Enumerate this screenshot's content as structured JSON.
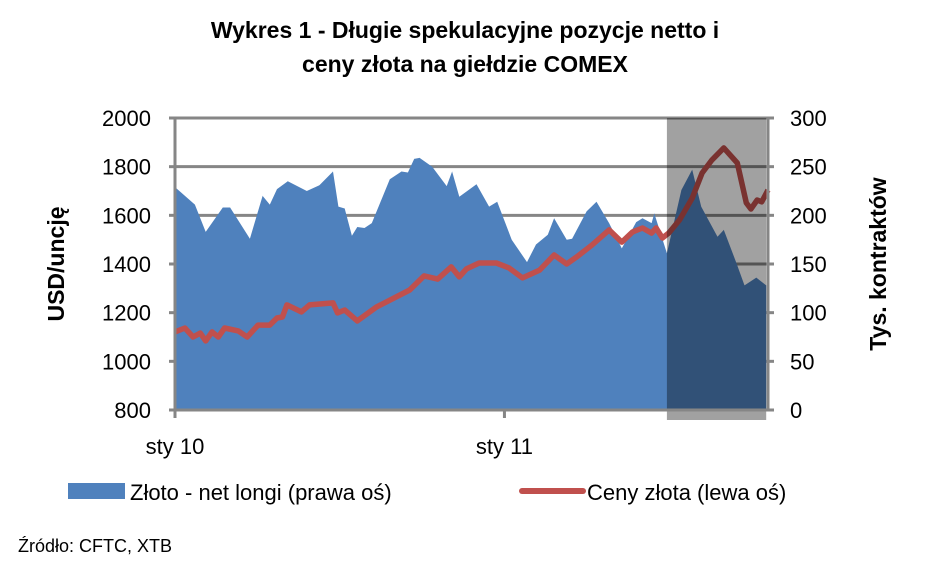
{
  "chart_data": {
    "type": "area+line",
    "title_lines": [
      "Wykres 1 - Długie spekulacyjne pozycje netto i",
      "ceny złota na giełdzie COMEX"
    ],
    "ylabel_left": "USD/uncję",
    "ylabel_right": "Tys. kontraktów",
    "ylim_left": [
      800,
      2000
    ],
    "ylim_right": [
      0,
      300
    ],
    "yticks_left": [
      "800",
      "1000",
      "1200",
      "1400",
      "1600",
      "1800",
      "2000"
    ],
    "yticks_right": [
      "0",
      "50",
      "100",
      "150",
      "200",
      "250",
      "300"
    ],
    "x_range": [
      "2010-01-01",
      "2011-10-20"
    ],
    "x_ticks": [
      {
        "date": "2010-01-01",
        "label": "sty 10"
      },
      {
        "date": "2011-01-01",
        "label": "sty 11"
      }
    ],
    "grid": "horizontal",
    "legend_placement": "bottom",
    "highlight_range": [
      "2011-06-30",
      "2011-10-18"
    ],
    "colors": {
      "area": "#4f81bd",
      "line": "#c0504d",
      "grid": "#868686",
      "highlight": "rgba(0,0,0,0.37)"
    },
    "series": [
      {
        "name": "Złoto - net longi (prawa oś)",
        "axis": "right",
        "kind": "area",
        "points": [
          [
            "2010-01-01",
            229
          ],
          [
            "2010-01-23",
            211
          ],
          [
            "2010-02-04",
            183
          ],
          [
            "2010-02-23",
            208
          ],
          [
            "2010-03-03",
            208
          ],
          [
            "2010-03-25",
            176
          ],
          [
            "2010-04-08",
            220
          ],
          [
            "2010-04-16",
            211
          ],
          [
            "2010-04-24",
            227
          ],
          [
            "2010-05-06",
            235
          ],
          [
            "2010-05-27",
            225
          ],
          [
            "2010-06-10",
            231
          ],
          [
            "2010-06-25",
            245
          ],
          [
            "2010-07-01",
            209
          ],
          [
            "2010-07-08",
            207
          ],
          [
            "2010-07-16",
            179
          ],
          [
            "2010-07-22",
            188
          ],
          [
            "2010-07-30",
            187
          ],
          [
            "2010-08-07",
            192
          ],
          [
            "2010-08-27",
            237
          ],
          [
            "2010-09-09",
            245
          ],
          [
            "2010-09-16",
            244
          ],
          [
            "2010-09-23",
            258
          ],
          [
            "2010-09-29",
            259
          ],
          [
            "2010-10-13",
            250
          ],
          [
            "2010-10-29",
            230
          ],
          [
            "2010-11-04",
            245
          ],
          [
            "2010-11-12",
            219
          ],
          [
            "2010-12-01",
            232
          ],
          [
            "2010-12-15",
            209
          ],
          [
            "2010-12-24",
            214
          ],
          [
            "2011-01-09",
            175
          ],
          [
            "2011-01-26",
            152
          ],
          [
            "2011-02-05",
            170
          ],
          [
            "2011-02-18",
            180
          ],
          [
            "2011-02-25",
            197
          ],
          [
            "2011-03-11",
            175
          ],
          [
            "2011-03-17",
            176
          ],
          [
            "2011-04-02",
            204
          ],
          [
            "2011-04-13",
            214
          ],
          [
            "2011-04-27",
            192
          ],
          [
            "2011-05-11",
            166
          ],
          [
            "2011-05-27",
            193
          ],
          [
            "2011-06-03",
            197
          ],
          [
            "2011-06-13",
            192
          ],
          [
            "2011-06-16",
            202
          ],
          [
            "2011-06-30",
            161
          ],
          [
            "2011-07-16",
            226
          ],
          [
            "2011-07-28",
            247
          ],
          [
            "2011-08-07",
            209
          ],
          [
            "2011-08-25",
            178
          ],
          [
            "2011-09-01",
            185
          ],
          [
            "2011-09-15",
            151
          ],
          [
            "2011-09-24",
            128
          ],
          [
            "2011-10-07",
            136
          ],
          [
            "2011-10-18",
            128
          ]
        ]
      },
      {
        "name": "Ceny złota (lewa oś)",
        "axis": "left",
        "kind": "line",
        "points": [
          [
            "2010-01-01",
            1121
          ],
          [
            "2010-01-12",
            1137
          ],
          [
            "2010-01-21",
            1100
          ],
          [
            "2010-01-29",
            1116
          ],
          [
            "2010-02-04",
            1084
          ],
          [
            "2010-02-11",
            1121
          ],
          [
            "2010-02-18",
            1100
          ],
          [
            "2010-02-25",
            1137
          ],
          [
            "2010-03-12",
            1125
          ],
          [
            "2010-03-22",
            1100
          ],
          [
            "2010-04-03",
            1149
          ],
          [
            "2010-04-16",
            1149
          ],
          [
            "2010-04-24",
            1178
          ],
          [
            "2010-04-30",
            1182
          ],
          [
            "2010-05-05",
            1232
          ],
          [
            "2010-05-21",
            1203
          ],
          [
            "2010-05-30",
            1232
          ],
          [
            "2010-06-25",
            1240
          ],
          [
            "2010-06-30",
            1199
          ],
          [
            "2010-07-08",
            1211
          ],
          [
            "2010-07-22",
            1166
          ],
          [
            "2010-08-12",
            1223
          ],
          [
            "2010-09-18",
            1293
          ],
          [
            "2010-10-04",
            1351
          ],
          [
            "2010-10-19",
            1338
          ],
          [
            "2010-11-03",
            1388
          ],
          [
            "2010-11-12",
            1347
          ],
          [
            "2010-11-20",
            1380
          ],
          [
            "2010-12-04",
            1404
          ],
          [
            "2010-12-23",
            1404
          ],
          [
            "2011-01-06",
            1384
          ],
          [
            "2011-01-21",
            1343
          ],
          [
            "2011-02-09",
            1375
          ],
          [
            "2011-02-25",
            1437
          ],
          [
            "2011-03-11",
            1400
          ],
          [
            "2011-03-22",
            1429
          ],
          [
            "2011-04-08",
            1478
          ],
          [
            "2011-04-27",
            1540
          ],
          [
            "2011-05-11",
            1490
          ],
          [
            "2011-05-23",
            1532
          ],
          [
            "2011-06-03",
            1548
          ],
          [
            "2011-06-13",
            1527
          ],
          [
            "2011-06-18",
            1548
          ],
          [
            "2011-06-25",
            1507
          ],
          [
            "2011-07-02",
            1527
          ],
          [
            "2011-07-14",
            1581
          ],
          [
            "2011-07-28",
            1671
          ],
          [
            "2011-08-08",
            1774
          ],
          [
            "2011-08-19",
            1828
          ],
          [
            "2011-09-01",
            1877
          ],
          [
            "2011-09-16",
            1815
          ],
          [
            "2011-09-26",
            1651
          ],
          [
            "2011-10-01",
            1626
          ],
          [
            "2011-10-08",
            1663
          ],
          [
            "2011-10-13",
            1655
          ],
          [
            "2011-10-20",
            1704
          ]
        ]
      }
    ]
  },
  "source": "Źródło: CFTC, XTB"
}
